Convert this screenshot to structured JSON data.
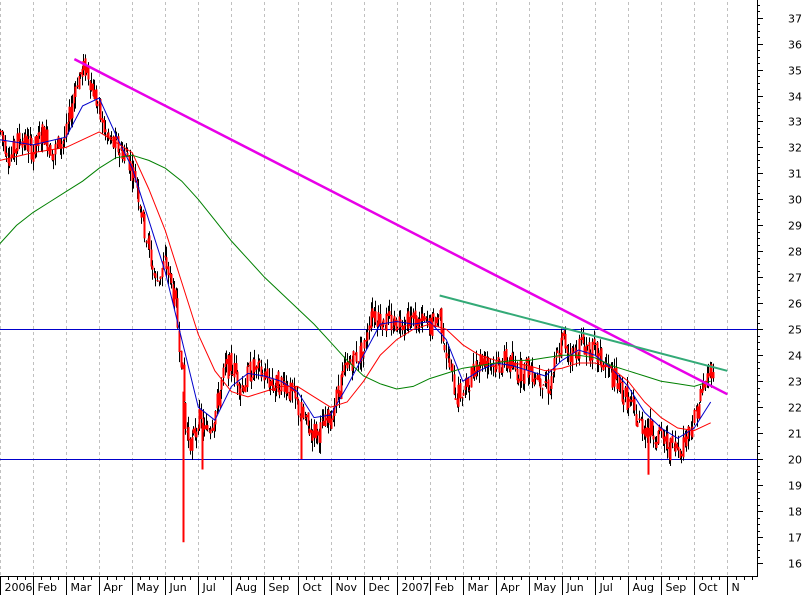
{
  "chart_data": {
    "type": "candlestick",
    "title": "",
    "xlabel": "",
    "ylabel": "",
    "ylim": [
      15.5,
      37.6
    ],
    "y_ticks": [
      16,
      17,
      18,
      19,
      20,
      21,
      22,
      23,
      24,
      25,
      26,
      27,
      28,
      29,
      30,
      31,
      32,
      33,
      34,
      35,
      36,
      37
    ],
    "x_ticks": [
      {
        "label": "2006",
        "t": 0
      },
      {
        "label": "Feb",
        "t": 1
      },
      {
        "label": "Mar",
        "t": 2
      },
      {
        "label": "Apr",
        "t": 3
      },
      {
        "label": "May",
        "t": 4
      },
      {
        "label": "Jun",
        "t": 5
      },
      {
        "label": "Jul",
        "t": 6
      },
      {
        "label": "Aug",
        "t": 7
      },
      {
        "label": "Sep",
        "t": 8
      },
      {
        "label": "Oct",
        "t": 9
      },
      {
        "label": "Nov",
        "t": 10
      },
      {
        "label": "Dec",
        "t": 11
      },
      {
        "label": "2007",
        "t": 12
      },
      {
        "label": "Feb",
        "t": 13
      },
      {
        "label": "Mar",
        "t": 14
      },
      {
        "label": "Apr",
        "t": 15
      },
      {
        "label": "May",
        "t": 16
      },
      {
        "label": "Jun",
        "t": 17
      },
      {
        "label": "Jul",
        "t": 18
      },
      {
        "label": "Aug",
        "t": 19
      },
      {
        "label": "Sep",
        "t": 20
      },
      {
        "label": "Oct",
        "t": 21
      },
      {
        "label": "N",
        "t": 22
      }
    ],
    "grid": {
      "vertical": true,
      "horizontal": false
    },
    "colors": {
      "candle": "#ff0000",
      "fast_ma": "#0000cc",
      "medium_ma": "#ff0000",
      "slow_ma": "#008000",
      "trendline_main": "#e800e8",
      "trendline_secondary": "#33aa77",
      "horizontal_line": "#0000cc",
      "grid": "#c0c0c0"
    },
    "price_path": [
      [
        0,
        32.6
      ],
      [
        0.3,
        31.6
      ],
      [
        0.6,
        32.4
      ],
      [
        1,
        31.9
      ],
      [
        1.3,
        32.6
      ],
      [
        1.6,
        31.8
      ],
      [
        2,
        32.5
      ],
      [
        2.3,
        34.6
      ],
      [
        2.6,
        35.1
      ],
      [
        2.9,
        33.8
      ],
      [
        3.2,
        32.4
      ],
      [
        3.5,
        32.0
      ],
      [
        3.8,
        31.8
      ],
      [
        4.1,
        30.8
      ],
      [
        4.4,
        28.6
      ],
      [
        4.7,
        26.8
      ],
      [
        5.0,
        27.6
      ],
      [
        5.3,
        26.0
      ],
      [
        5.5,
        23.5
      ],
      [
        5.6,
        21.2
      ],
      [
        5.8,
        20.6
      ],
      [
        6.0,
        21.6
      ],
      [
        6.2,
        21.0
      ],
      [
        6.5,
        21.8
      ],
      [
        6.8,
        23.5
      ],
      [
        7.0,
        23.6
      ],
      [
        7.3,
        22.8
      ],
      [
        7.6,
        23.5
      ],
      [
        8.0,
        23.2
      ],
      [
        8.3,
        22.8
      ],
      [
        8.6,
        23.0
      ],
      [
        9.0,
        22.0
      ],
      [
        9.3,
        21.2
      ],
      [
        9.6,
        21.0
      ],
      [
        10.0,
        21.6
      ],
      [
        10.3,
        23.0
      ],
      [
        10.6,
        23.8
      ],
      [
        11.0,
        24.2
      ],
      [
        11.2,
        25.8
      ],
      [
        11.5,
        25.4
      ],
      [
        11.8,
        25.2
      ],
      [
        12.0,
        25.3
      ],
      [
        12.3,
        25.5
      ],
      [
        12.6,
        25.3
      ],
      [
        13.0,
        25.1
      ],
      [
        13.3,
        25.6
      ],
      [
        13.5,
        24.0
      ],
      [
        13.8,
        22.4
      ],
      [
        14.1,
        22.7
      ],
      [
        14.4,
        23.8
      ],
      [
        14.7,
        23.9
      ],
      [
        15.0,
        23.6
      ],
      [
        15.3,
        23.8
      ],
      [
        15.6,
        23.4
      ],
      [
        16.0,
        23.5
      ],
      [
        16.3,
        23.2
      ],
      [
        16.6,
        22.8
      ],
      [
        17.0,
        24.6
      ],
      [
        17.3,
        24.0
      ],
      [
        17.6,
        24.5
      ],
      [
        18.0,
        24.0
      ],
      [
        18.3,
        23.6
      ],
      [
        18.6,
        23.0
      ],
      [
        19.0,
        22.2
      ],
      [
        19.3,
        21.4
      ],
      [
        19.6,
        21.2
      ],
      [
        20.0,
        20.8
      ],
      [
        20.3,
        20.4
      ],
      [
        20.6,
        20.5
      ],
      [
        21.0,
        21.6
      ],
      [
        21.2,
        22.5
      ],
      [
        21.4,
        23.2
      ],
      [
        21.6,
        23.8
      ]
    ],
    "spikes": [
      {
        "t": 5.55,
        "high": 22.6,
        "low": 16.8
      },
      {
        "t": 6.1,
        "high": 21.4,
        "low": 19.6
      },
      {
        "t": 9.1,
        "high": 22.2,
        "low": 20.0
      },
      {
        "t": 19.6,
        "high": 21.0,
        "low": 19.4
      }
    ],
    "series": [
      {
        "key": "fast_ma",
        "points": [
          [
            0,
            32.3
          ],
          [
            1,
            32.1
          ],
          [
            2,
            32.4
          ],
          [
            2.5,
            33.6
          ],
          [
            3.0,
            33.9
          ],
          [
            3.5,
            32.5
          ],
          [
            4.0,
            31.2
          ],
          [
            4.5,
            29.2
          ],
          [
            5.0,
            27.2
          ],
          [
            5.5,
            24.6
          ],
          [
            6.0,
            22.0
          ],
          [
            6.5,
            21.5
          ],
          [
            7.0,
            22.8
          ],
          [
            7.5,
            23.3
          ],
          [
            8.0,
            23.2
          ],
          [
            8.5,
            23.0
          ],
          [
            9.0,
            22.6
          ],
          [
            9.5,
            21.6
          ],
          [
            10.0,
            21.7
          ],
          [
            10.5,
            22.8
          ],
          [
            11.0,
            24.0
          ],
          [
            11.5,
            25.2
          ],
          [
            12.0,
            25.3
          ],
          [
            12.5,
            25.2
          ],
          [
            13.0,
            25.3
          ],
          [
            13.5,
            24.6
          ],
          [
            14.0,
            23.0
          ],
          [
            14.5,
            23.4
          ],
          [
            15.0,
            23.7
          ],
          [
            15.5,
            23.6
          ],
          [
            16.0,
            23.4
          ],
          [
            16.5,
            23.2
          ],
          [
            17.0,
            23.8
          ],
          [
            17.5,
            24.2
          ],
          [
            18.0,
            24.0
          ],
          [
            18.5,
            23.5
          ],
          [
            19.0,
            22.8
          ],
          [
            19.5,
            21.8
          ],
          [
            20.0,
            21.2
          ],
          [
            20.5,
            20.8
          ],
          [
            21.0,
            21.2
          ],
          [
            21.5,
            22.2
          ]
        ]
      },
      {
        "key": "medium_ma",
        "points": [
          [
            0,
            31.5
          ],
          [
            1,
            31.8
          ],
          [
            2,
            32.0
          ],
          [
            3,
            32.6
          ],
          [
            4,
            31.8
          ],
          [
            4.5,
            30.4
          ],
          [
            5.0,
            28.8
          ],
          [
            5.5,
            26.8
          ],
          [
            6.0,
            24.8
          ],
          [
            6.5,
            23.4
          ],
          [
            7.0,
            22.6
          ],
          [
            7.5,
            22.4
          ],
          [
            8.0,
            22.6
          ],
          [
            8.5,
            22.8
          ],
          [
            9.0,
            22.8
          ],
          [
            9.5,
            22.4
          ],
          [
            10.0,
            22.0
          ],
          [
            10.5,
            22.2
          ],
          [
            11.0,
            23.0
          ],
          [
            11.5,
            24.0
          ],
          [
            12.0,
            24.6
          ],
          [
            12.5,
            25.0
          ],
          [
            13.0,
            25.2
          ],
          [
            13.5,
            25.0
          ],
          [
            14.0,
            24.4
          ],
          [
            14.5,
            24.0
          ],
          [
            15.0,
            23.8
          ],
          [
            15.5,
            23.7
          ],
          [
            16.0,
            23.6
          ],
          [
            16.5,
            23.4
          ],
          [
            17.0,
            23.5
          ],
          [
            17.5,
            23.7
          ],
          [
            18.0,
            23.7
          ],
          [
            18.5,
            23.5
          ],
          [
            19.0,
            23.0
          ],
          [
            19.5,
            22.2
          ],
          [
            20.0,
            21.6
          ],
          [
            20.5,
            21.2
          ],
          [
            21.0,
            21.1
          ],
          [
            21.5,
            21.4
          ]
        ]
      },
      {
        "key": "slow_ma",
        "points": [
          [
            0,
            28.3
          ],
          [
            0.5,
            29.0
          ],
          [
            1.0,
            29.5
          ],
          [
            1.5,
            29.9
          ],
          [
            2.0,
            30.3
          ],
          [
            2.5,
            30.7
          ],
          [
            3.0,
            31.2
          ],
          [
            3.5,
            31.6
          ],
          [
            4.0,
            31.7
          ],
          [
            4.5,
            31.5
          ],
          [
            5.0,
            31.2
          ],
          [
            5.5,
            30.7
          ],
          [
            6.0,
            30.0
          ],
          [
            6.5,
            29.2
          ],
          [
            7.0,
            28.4
          ],
          [
            7.5,
            27.7
          ],
          [
            8.0,
            27.0
          ],
          [
            8.5,
            26.4
          ],
          [
            9.0,
            25.8
          ],
          [
            9.5,
            25.2
          ],
          [
            10.0,
            24.5
          ],
          [
            10.5,
            23.8
          ],
          [
            11.0,
            23.2
          ],
          [
            11.5,
            22.9
          ],
          [
            12.0,
            22.7
          ],
          [
            12.5,
            22.8
          ],
          [
            13.0,
            23.1
          ],
          [
            13.5,
            23.3
          ],
          [
            14.0,
            23.5
          ],
          [
            14.5,
            23.6
          ],
          [
            15.0,
            23.7
          ],
          [
            15.5,
            23.8
          ],
          [
            16.0,
            23.8
          ],
          [
            16.5,
            23.9
          ],
          [
            17.0,
            24.0
          ],
          [
            17.5,
            24.0
          ],
          [
            18.0,
            23.9
          ],
          [
            18.5,
            23.6
          ],
          [
            19.0,
            23.4
          ],
          [
            19.5,
            23.2
          ],
          [
            20.0,
            23.0
          ],
          [
            20.5,
            22.9
          ],
          [
            21.0,
            22.8
          ],
          [
            21.5,
            23.0
          ]
        ]
      }
    ],
    "trendlines": [
      {
        "key": "trendline_main",
        "from": [
          2.25,
          35.4
        ],
        "to": [
          22.0,
          22.5
        ]
      },
      {
        "key": "trendline_secondary",
        "from": [
          13.3,
          26.3
        ],
        "to": [
          22.0,
          23.4
        ]
      }
    ],
    "horizontal_lines": [
      25.0,
      20.0
    ]
  }
}
